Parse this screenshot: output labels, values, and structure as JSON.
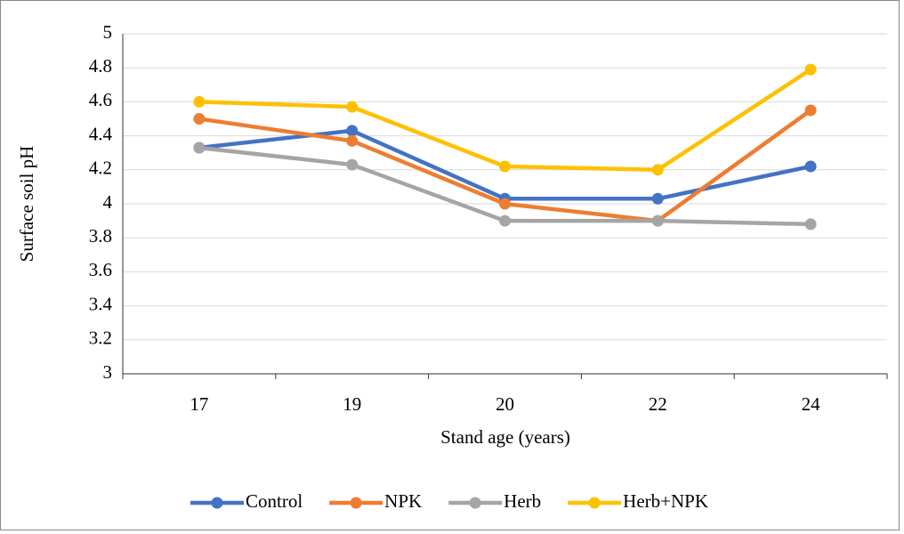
{
  "chart_data": {
    "type": "line",
    "x_label": "Stand age (years)",
    "y_label": "Surface soil pH",
    "categories": [
      "17",
      "19",
      "20",
      "22",
      "24"
    ],
    "series": [
      {
        "name": "Control",
        "color": "#4472c4",
        "values": [
          4.33,
          4.43,
          4.03,
          4.03,
          4.22
        ]
      },
      {
        "name": "NPK",
        "color": "#ed7d31",
        "values": [
          4.5,
          4.37,
          4.0,
          3.9,
          4.55
        ]
      },
      {
        "name": "Herb",
        "color": "#a5a5a5",
        "values": [
          4.33,
          4.23,
          3.9,
          3.9,
          3.88
        ]
      },
      {
        "name": "Herb+NPK",
        "color": "#ffc000",
        "values": [
          4.6,
          4.57,
          4.22,
          4.2,
          4.79
        ]
      }
    ],
    "ylim": [
      3,
      5
    ],
    "yticks": [
      3,
      3.2,
      3.4,
      3.6,
      3.8,
      4,
      4.2,
      4.4,
      4.6,
      4.8,
      5
    ],
    "grid": true,
    "legend": "bottom"
  }
}
